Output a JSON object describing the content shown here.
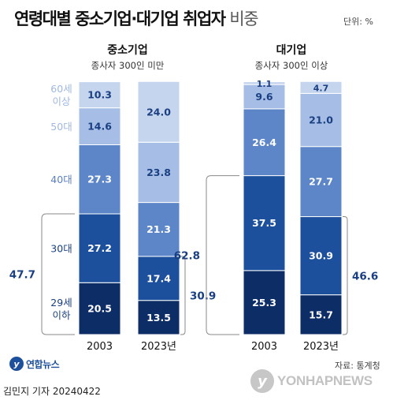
{
  "title": "연령대별 중소기업·대기업 취업자",
  "title_suffix": "비중",
  "unit": "단위: %",
  "source": "자료: 통계청",
  "byline": "김민지 기자  20240422",
  "logo_left": {
    "icon": "yonhap-logo-icon",
    "text": "연합뉴스"
  },
  "logo_right": {
    "icon": "yonhap-logo-icon",
    "text": "YONHAPNEWS"
  },
  "colors": {
    "c20": "#0d2d67",
    "c30": "#1c4f9c",
    "c40": "#5c86c8",
    "c50": "#a6bee5",
    "c60": "#c5d5ee",
    "label_dark": "#ffffff",
    "label_light": "#1a3f82",
    "axis_label": "#5b7fc2"
  },
  "chart_data": [
    {
      "type": "bar",
      "stacked": true,
      "title": "중소기업",
      "subtitle": "종사자 300인 미만",
      "categories": [
        "2003",
        "2023년"
      ],
      "series": [
        {
          "name": "29세 이하",
          "values": [
            20.5,
            13.5
          ]
        },
        {
          "name": "30대",
          "values": [
            27.2,
            17.4
          ]
        },
        {
          "name": "40대",
          "values": [
            27.3,
            21.3
          ]
        },
        {
          "name": "50대",
          "values": [
            14.6,
            23.8
          ]
        },
        {
          "name": "60세 이상",
          "values": [
            10.3,
            24.0
          ]
        }
      ],
      "bracket_totals": [
        {
          "category": "2003",
          "series": [
            "29세 이하",
            "30대"
          ],
          "value": "47.7"
        },
        {
          "category": "2023년",
          "series": [
            "29세 이하",
            "30대"
          ],
          "value": "30.9"
        }
      ],
      "ylim": [
        0,
        100.4
      ]
    },
    {
      "type": "bar",
      "stacked": true,
      "title": "대기업",
      "subtitle": "종사자 300인 이상",
      "categories": [
        "2003",
        "2023년"
      ],
      "series": [
        {
          "name": "29세 이하",
          "values": [
            25.3,
            15.7
          ]
        },
        {
          "name": "30대",
          "values": [
            37.5,
            30.9
          ]
        },
        {
          "name": "40대",
          "values": [
            26.4,
            27.7
          ]
        },
        {
          "name": "50대",
          "values": [
            9.6,
            21.0
          ]
        },
        {
          "name": "60세 이상",
          "values": [
            1.1,
            4.7
          ]
        }
      ],
      "bracket_totals": [
        {
          "category": "2003",
          "series": [
            "29세 이하",
            "30대"
          ],
          "value": "62.8"
        },
        {
          "category": "2023년",
          "series": [
            "29세 이하",
            "30대"
          ],
          "value": "46.6"
        }
      ],
      "ylim": [
        0,
        100.4
      ]
    }
  ]
}
